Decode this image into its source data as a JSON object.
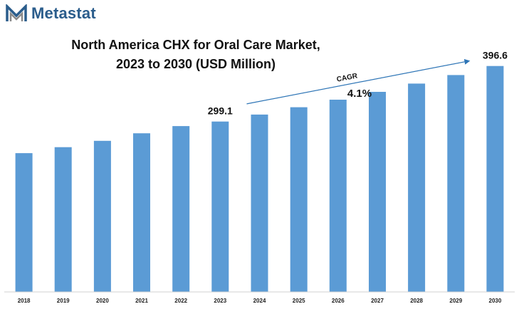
{
  "brand": {
    "name": "Metastat",
    "logo_icon": "metastat-m-logo",
    "color": "#2b5d8c"
  },
  "chart_data": {
    "type": "bar",
    "title_line1": "North America CHX for Oral Care Market,",
    "title_line2": "2023 to 2030 (USD Million)",
    "categories": [
      "2018",
      "2019",
      "2020",
      "2021",
      "2022",
      "2023",
      "2024",
      "2025",
      "2026",
      "2027",
      "2028",
      "2029",
      "2030"
    ],
    "values": [
      243.6,
      254.1,
      265.3,
      278.5,
      291.1,
      299.1,
      311.4,
      324.2,
      337.5,
      351.3,
      365.7,
      380.7,
      396.6
    ],
    "data_labels": {
      "5": "299.1",
      "12": "396.6"
    },
    "bar_color": "#5b9bd5",
    "ylim": [
      0,
      420
    ],
    "grid": false,
    "annotation": {
      "label": "CAGR",
      "value": "4.1%",
      "from_category": "2024",
      "to_category": "2030",
      "arrow_color": "#2e75b6"
    },
    "xlabel": "",
    "ylabel": ""
  }
}
